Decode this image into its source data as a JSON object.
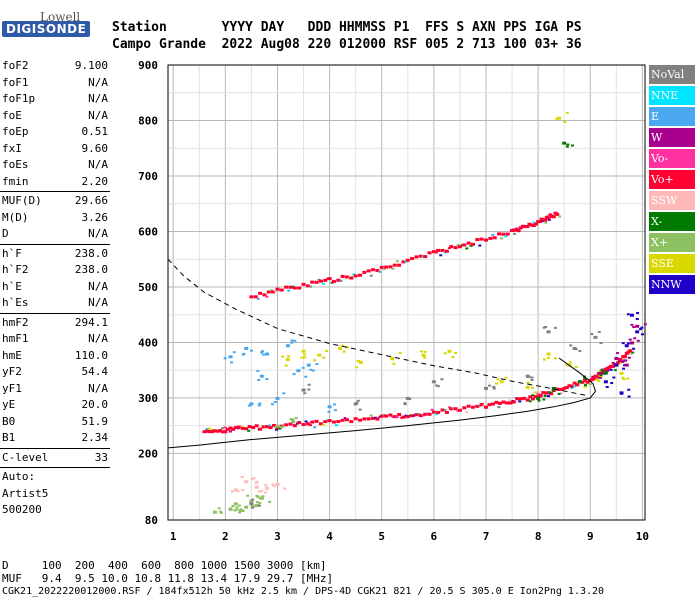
{
  "logo": {
    "brand_top": "Lowell",
    "brand_bottom": "DIGISONDE"
  },
  "header": {
    "row1": "Station       YYYY DAY   DDD HHMMSS P1  FFS S AXN PPS IGA PS",
    "row2": "Campo Grande  2022 Aug08 220 012000 RSF 005 2 713 100 03+ 36"
  },
  "params": [
    {
      "label": "foF2",
      "value": "9.100"
    },
    {
      "label": "foF1",
      "value": "N/A"
    },
    {
      "label": "foF1p",
      "value": "N/A"
    },
    {
      "label": "foE",
      "value": "N/A"
    },
    {
      "label": "foEp",
      "value": "0.51"
    },
    {
      "label": "fxI",
      "value": "9.60"
    },
    {
      "label": "foEs",
      "value": "N/A"
    },
    {
      "label": "fmin",
      "value": "2.20"
    },
    {
      "sep": true
    },
    {
      "label": "MUF(D)",
      "value": "29.66"
    },
    {
      "label": "M(D)",
      "value": "3.26"
    },
    {
      "label": "D",
      "value": "N/A"
    },
    {
      "sep": true
    },
    {
      "label": "h`F",
      "value": "238.0"
    },
    {
      "label": "h`F2",
      "value": "238.0"
    },
    {
      "label": "h`E",
      "value": "N/A"
    },
    {
      "label": "h`Es",
      "value": "N/A"
    },
    {
      "sep": true
    },
    {
      "label": "hmF2",
      "value": "294.1"
    },
    {
      "label": "hmF1",
      "value": "N/A"
    },
    {
      "label": "hmE",
      "value": "110.0"
    },
    {
      "label": "yF2",
      "value": "54.4"
    },
    {
      "label": "yF1",
      "value": "N/A"
    },
    {
      "label": "yE",
      "value": "20.0"
    },
    {
      "label": "B0",
      "value": "51.9"
    },
    {
      "label": "B1",
      "value": "2.34"
    },
    {
      "sep": true
    },
    {
      "label": "C-level",
      "value": "33"
    },
    {
      "sep": true
    },
    {
      "label": "Auto:",
      "value": ""
    },
    {
      "label": "Artist5",
      "value": ""
    },
    {
      "label": "500200",
      "value": ""
    }
  ],
  "legend": [
    {
      "label": "NoVal",
      "color": "#808080"
    },
    {
      "label": "NNE",
      "color": "#00e5ff"
    },
    {
      "label": "E",
      "color": "#4aa8f0"
    },
    {
      "label": "W",
      "color": "#a8008c"
    },
    {
      "label": "Vo-",
      "color": "#ff30a0"
    },
    {
      "label": "Vo+",
      "color": "#ff0030"
    },
    {
      "label": "SSW",
      "color": "#ffb8b8"
    },
    {
      "label": "X-",
      "color": "#007a00"
    },
    {
      "label": "X+",
      "color": "#8cc060"
    },
    {
      "label": "SSE",
      "color": "#d8d800"
    },
    {
      "label": "NNW",
      "color": "#2000c8"
    }
  ],
  "footer": {
    "distance_row": "D     100  200  400  600  800 1000 1500 3000 [km]",
    "muf_row": "MUF   9.4  9.5 10.0 10.8 11.8 13.4 17.9 29.7 [MHz]",
    "file_row": "CGK21_2022220012000.RSF / 184fx512h 50 kHz 2.5 km / DPS-4D CGK21 821 / 20.5 S 305.0 E Ion2Png 1.3.20"
  },
  "chart_data": {
    "type": "scatter",
    "x_ticks": [
      1,
      2,
      3,
      4,
      5,
      6,
      7,
      8,
      9,
      10
    ],
    "y_ticks": [
      80,
      200,
      300,
      400,
      500,
      600,
      700,
      800,
      900
    ],
    "xlim": [
      0.9,
      10.05
    ],
    "ylim": [
      80,
      900
    ],
    "grid": true,
    "legend_position": "right",
    "profile_solid": {
      "x": [
        0.9,
        1.5,
        2.5,
        3.5,
        4.5,
        5.5,
        6.5,
        7.2,
        7.8,
        8.3,
        8.7,
        9.0,
        9.1,
        9.05,
        8.8,
        8.4
      ],
      "y": [
        210,
        215,
        225,
        233,
        241,
        250,
        260,
        268,
        276,
        284,
        292,
        300,
        312,
        326,
        345,
        372
      ]
    },
    "profile_dashed": {
      "x": [
        0.9,
        1.2,
        1.6,
        2.2,
        3.0,
        4.0,
        5.0,
        6.0,
        6.8,
        7.5,
        8.2,
        8.9
      ],
      "y": [
        550,
        520,
        490,
        460,
        425,
        398,
        378,
        358,
        345,
        330,
        318,
        305
      ]
    },
    "series": [
      {
        "name": "Vo+",
        "color": "#ff0030",
        "kind": "trace",
        "x": [
          1.6,
          2.2,
          3.0,
          4.0,
          5.0,
          6.0,
          7.0,
          7.8,
          8.4,
          9.0,
          9.4,
          9.8
        ],
        "y": [
          240,
          245,
          250,
          257,
          265,
          275,
          287,
          300,
          315,
          333,
          355,
          385
        ]
      },
      {
        "name": "Vo+",
        "color": "#ff0030",
        "kind": "trace",
        "x": [
          2.5,
          3.5,
          4.5,
          5.5,
          6.5,
          7.5,
          8.0,
          8.4
        ],
        "y": [
          485,
          503,
          522,
          548,
          575,
          600,
          618,
          634
        ]
      },
      {
        "name": "X+",
        "color": "#8cc060",
        "kind": "scatter",
        "x": [
          1.8,
          2.1,
          2.4,
          2.6,
          2.2,
          2.5,
          2.7,
          2.3,
          3.0,
          3.3
        ],
        "y": [
          95,
          100,
          104,
          107,
          110,
          115,
          120,
          98,
          250,
          258
        ]
      },
      {
        "name": "SSE",
        "color": "#d8d800",
        "kind": "scatter",
        "x": [
          3.2,
          3.5,
          3.8,
          4.2,
          4.6,
          5.2,
          5.8,
          6.3,
          7.3,
          7.8,
          8.2,
          8.6,
          9.2,
          9.6,
          8.4
        ],
        "y": [
          370,
          385,
          378,
          390,
          365,
          372,
          378,
          385,
          330,
          320,
          380,
          360,
          340,
          345,
          805
        ]
      },
      {
        "name": "E",
        "color": "#4aa8f0",
        "kind": "scatter",
        "x": [
          2.1,
          2.4,
          2.8,
          3.2,
          3.6,
          2.5,
          3.0,
          2.7,
          4.0,
          3.4
        ],
        "y": [
          375,
          390,
          380,
          395,
          360,
          290,
          300,
          340,
          285,
          350
        ]
      },
      {
        "name": "SSW",
        "color": "#ffb8b8",
        "kind": "scatter",
        "x": [
          2.2,
          2.6,
          3.0,
          2.4,
          2.8
        ],
        "y": [
          135,
          140,
          145,
          150,
          138
        ]
      },
      {
        "name": "NNW",
        "color": "#2000c8",
        "kind": "scatter",
        "x": [
          9.3,
          9.5,
          9.7,
          9.9,
          9.8,
          9.6
        ],
        "y": [
          330,
          360,
          395,
          420,
          450,
          310
        ]
      },
      {
        "name": "W",
        "color": "#a8008c",
        "kind": "scatter",
        "x": [
          9.2,
          9.5,
          9.8,
          9.9,
          9.7
        ],
        "y": [
          345,
          372,
          400,
          430,
          360
        ]
      },
      {
        "name": "NoVal",
        "color": "#808080",
        "kind": "scatter",
        "x": [
          5.5,
          6.0,
          7.0,
          7.8,
          8.2,
          8.7,
          9.1,
          4.5,
          2.5,
          3.5
        ],
        "y": [
          300,
          330,
          318,
          340,
          420,
          390,
          410,
          290,
          110,
          315
        ]
      },
      {
        "name": "X-",
        "color": "#007a00",
        "kind": "scatter",
        "x": [
          8.0,
          8.3,
          8.8,
          9.3,
          8.5
        ],
        "y": [
          300,
          318,
          330,
          346,
          760
        ]
      }
    ]
  }
}
